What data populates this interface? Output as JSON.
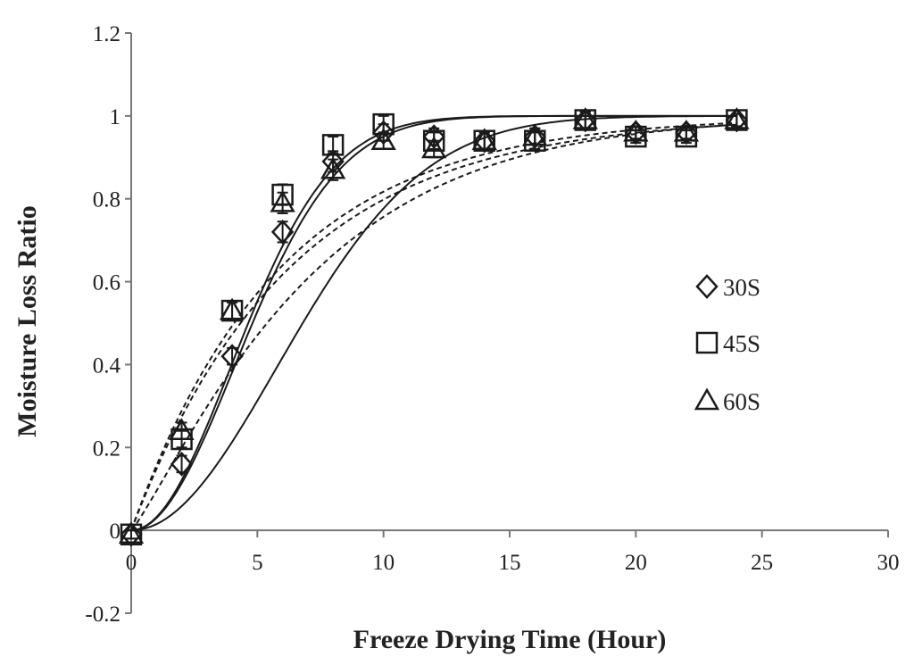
{
  "chart_data": {
    "type": "scatter",
    "title": "",
    "xlabel": "Freeze Drying Time (Hour)",
    "ylabel": "Moisture Loss Ratio",
    "xlim": [
      0,
      30
    ],
    "ylim": [
      -0.2,
      1.2
    ],
    "xticks": [
      "0",
      "5",
      "10",
      "15",
      "20",
      "25",
      "30"
    ],
    "yticks": [
      "-0.2",
      "0",
      "0.2",
      "0.4",
      "0.6",
      "0.8",
      "1",
      "1.2"
    ],
    "legend_position": "right",
    "series": [
      {
        "name": "30S",
        "marker": "diamond",
        "x": [
          0,
          2,
          4,
          6,
          8,
          10,
          12,
          14,
          16,
          18,
          20,
          22,
          24
        ],
        "y": [
          -0.01,
          0.16,
          0.42,
          0.72,
          0.89,
          0.96,
          0.95,
          0.94,
          0.95,
          0.99,
          0.96,
          0.96,
          0.99
        ],
        "err": [
          0.01,
          0.02,
          0.02,
          0.025,
          0.025,
          0.02,
          0.02,
          0.02,
          0.02,
          0.02,
          0.015,
          0.015,
          0.015
        ]
      },
      {
        "name": "45S",
        "marker": "square",
        "x": [
          0,
          2,
          4,
          6,
          8,
          10,
          12,
          14,
          16,
          18,
          20,
          22,
          24
        ],
        "y": [
          -0.01,
          0.22,
          0.53,
          0.81,
          0.93,
          0.98,
          0.94,
          0.94,
          0.94,
          0.99,
          0.95,
          0.95,
          0.99
        ],
        "err": [
          0.01,
          0.02,
          0.02,
          0.025,
          0.02,
          0.02,
          0.02,
          0.02,
          0.02,
          0.02,
          0.015,
          0.015,
          0.015
        ]
      },
      {
        "name": "60S",
        "marker": "triangle",
        "x": [
          0,
          2,
          4,
          6,
          8,
          10,
          12,
          14,
          16,
          18,
          20,
          22,
          24
        ],
        "y": [
          -0.01,
          0.24,
          0.53,
          0.79,
          0.87,
          0.94,
          0.92,
          0.94,
          0.95,
          0.99,
          0.96,
          0.96,
          0.99
        ],
        "err": [
          0.01,
          0.02,
          0.02,
          0.025,
          0.025,
          0.02,
          0.02,
          0.02,
          0.02,
          0.02,
          0.015,
          0.015,
          0.015
        ]
      }
    ],
    "fits": [
      {
        "name": "fit-solid-1",
        "style": "solid",
        "k": 0.015,
        "n": 2.0
      },
      {
        "name": "fit-solid-2",
        "style": "solid",
        "k": 0.03,
        "n": 2.0
      },
      {
        "name": "fit-solid-3",
        "style": "solid",
        "k": 0.0322,
        "n": 2.0
      },
      {
        "name": "fit-dashed-1",
        "style": "dashed",
        "k": 0.1,
        "n": 1.15
      },
      {
        "name": "fit-dashed-2",
        "style": "dashed",
        "k": 0.16,
        "n": 1.0
      },
      {
        "name": "fit-dashed-3",
        "style": "dashed",
        "k": 0.17,
        "n": 1.0
      }
    ]
  }
}
